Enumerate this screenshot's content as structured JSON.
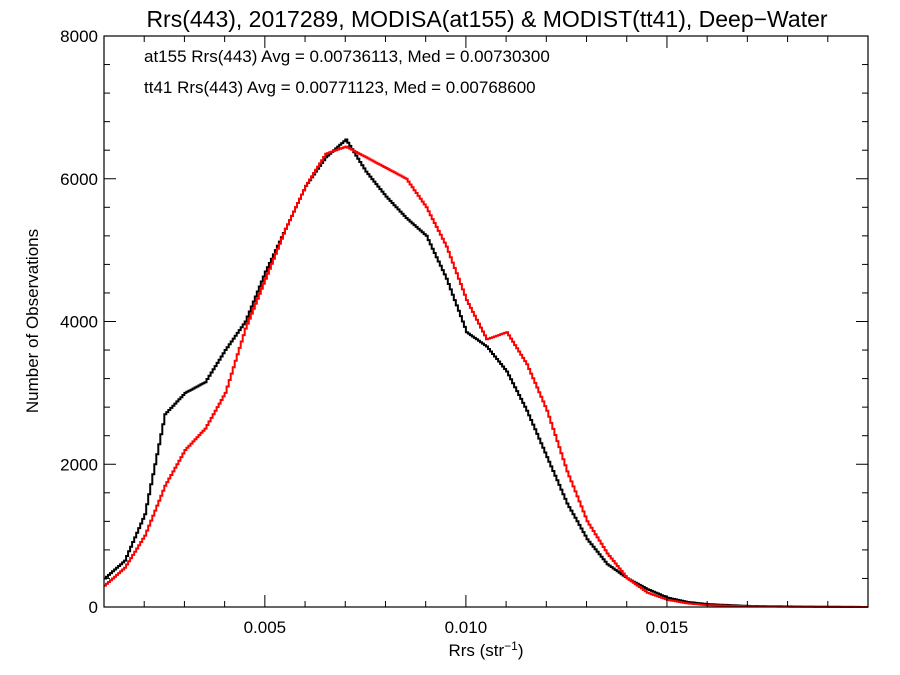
{
  "chart_data": {
    "type": "line",
    "title": "Rrs(443), 2017289, MODISA(at155) & MODIST(tt41), Deep−Water",
    "xlabel": "Rrs (str",
    "xlabel_sup": "−1",
    "xlabel_close": ")",
    "ylabel": "Number of Observations",
    "xlim": [
      0.001,
      0.02
    ],
    "ylim": [
      0,
      8000
    ],
    "x_ticks": [
      {
        "value": 0.005,
        "label": "0.005"
      },
      {
        "value": 0.01,
        "label": "0.010"
      },
      {
        "value": 0.015,
        "label": "0.015"
      }
    ],
    "y_ticks": [
      {
        "value": 0,
        "label": "0"
      },
      {
        "value": 2000,
        "label": "2000"
      },
      {
        "value": 4000,
        "label": "4000"
      },
      {
        "value": 6000,
        "label": "6000"
      },
      {
        "value": 8000,
        "label": "8000"
      }
    ],
    "grid": false,
    "step_style": "histogram",
    "annotations": [
      {
        "text": "at155 Rrs(443) Avg = 0.00736113, Med = 0.00730300",
        "color": "#000000"
      },
      {
        "text": "tt41 Rrs(443) Avg = 0.00771123, Med = 0.00768600",
        "color": "#ff0000"
      }
    ],
    "series": [
      {
        "color": "#000000",
        "x": [
          0.001,
          0.0015,
          0.002,
          0.0025,
          0.003,
          0.0035,
          0.004,
          0.0045,
          0.005,
          0.0055,
          0.006,
          0.0065,
          0.007,
          0.0075,
          0.008,
          0.0085,
          0.009,
          0.0095,
          0.01,
          0.0105,
          0.011,
          0.0115,
          0.012,
          0.0125,
          0.013,
          0.0135,
          0.014,
          0.0145,
          0.015,
          0.0155,
          0.016,
          0.017,
          0.018,
          0.019,
          0.02
        ],
        "y": [
          400,
          650,
          1300,
          2700,
          3000,
          3150,
          3600,
          4000,
          4700,
          5300,
          5900,
          6300,
          6550,
          6100,
          5750,
          5450,
          5200,
          4600,
          3850,
          3650,
          3300,
          2750,
          2100,
          1450,
          950,
          600,
          400,
          250,
          130,
          70,
          40,
          15,
          8,
          3,
          0
        ]
      },
      {
        "color": "#ff0000",
        "x": [
          0.001,
          0.0015,
          0.002,
          0.0025,
          0.003,
          0.0035,
          0.004,
          0.0045,
          0.005,
          0.0055,
          0.006,
          0.0065,
          0.007,
          0.0075,
          0.008,
          0.0085,
          0.009,
          0.0095,
          0.01,
          0.0105,
          0.011,
          0.0115,
          0.012,
          0.0125,
          0.013,
          0.0135,
          0.014,
          0.0145,
          0.015,
          0.0155,
          0.016,
          0.017,
          0.018,
          0.019,
          0.02
        ],
        "y": [
          300,
          550,
          1000,
          1700,
          2200,
          2500,
          3000,
          3900,
          4600,
          5300,
          5900,
          6350,
          6450,
          6300,
          6150,
          6000,
          5600,
          5050,
          4300,
          3750,
          3850,
          3400,
          2750,
          1900,
          1200,
          750,
          400,
          200,
          100,
          50,
          25,
          10,
          5,
          2,
          0
        ]
      }
    ]
  }
}
